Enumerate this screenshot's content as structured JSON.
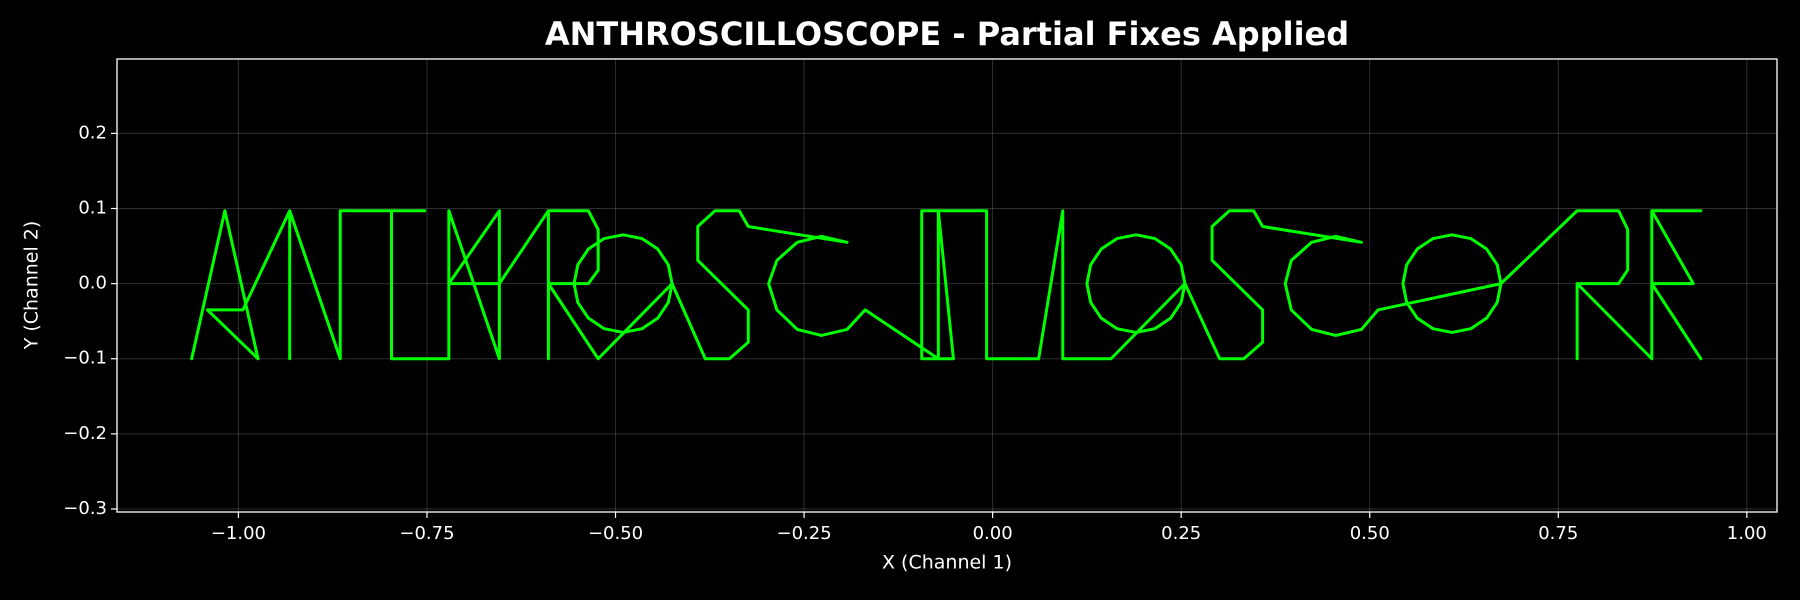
{
  "chart_data": {
    "type": "line",
    "title": "ANTHROSCILLOSCOPE - Partial Fixes Applied",
    "xlabel": "X (Channel 1)",
    "ylabel": "Y (Channel 2)",
    "color": "#00ff00",
    "grid": true,
    "xlim": [
      -1.161,
      1.04
    ],
    "ylim": [
      -0.304,
      0.299
    ],
    "xticks": [
      {
        "value": -1,
        "label": "−1.00"
      },
      {
        "value": -0.75,
        "label": "−0.75"
      },
      {
        "value": -0.5,
        "label": "−0.50"
      },
      {
        "value": -0.25,
        "label": "−0.25"
      },
      {
        "value": 0,
        "label": "0.00"
      },
      {
        "value": 0.25,
        "label": "0.25"
      },
      {
        "value": 0.5,
        "label": "0.50"
      },
      {
        "value": 0.75,
        "label": "0.75"
      },
      {
        "value": 1,
        "label": "1.00"
      }
    ],
    "yticks": [
      {
        "value": -0.3,
        "label": "−0.3"
      },
      {
        "value": -0.2,
        "label": "−0.2"
      },
      {
        "value": -0.1,
        "label": "−0.1"
      },
      {
        "value": 0,
        "label": "0.0"
      },
      0.1,
      0.2
    ],
    "x": [
      -1.062,
      -1.018,
      -0.974,
      -1.041,
      -0.994,
      -0.932,
      -0.932,
      -0.932,
      -0.865,
      -0.865,
      -0.753,
      -0.797,
      -0.797,
      -0.721,
      -0.721,
      -0.654,
      -0.654,
      -0.721,
      -0.654,
      -0.589,
      -0.589,
      -0.589,
      -0.536,
      -0.523,
      -0.523,
      -0.536,
      -0.589,
      -0.523,
      -0.425,
      -0.43,
      -0.444,
      -0.465,
      -0.49,
      -0.515,
      -0.536,
      -0.55,
      -0.555,
      -0.55,
      -0.536,
      -0.515,
      -0.49,
      -0.465,
      -0.444,
      -0.43,
      -0.425,
      -0.381,
      -0.349,
      -0.324,
      -0.324,
      -0.391,
      -0.391,
      -0.368,
      -0.336,
      -0.324,
      -0.193,
      -0.227,
      -0.259,
      -0.286,
      -0.297,
      -0.286,
      -0.259,
      -0.227,
      -0.193,
      -0.169,
      -0.072,
      -0.072,
      -0.052,
      -0.094,
      -0.094,
      -0.008,
      -0.008,
      0.061,
      0.093,
      0.093,
      0.157,
      0.255,
      0.25,
      0.236,
      0.215,
      0.19,
      0.165,
      0.144,
      0.13,
      0.125,
      0.13,
      0.144,
      0.165,
      0.19,
      0.215,
      0.236,
      0.25,
      0.255,
      0.301,
      0.333,
      0.358,
      0.358,
      0.291,
      0.291,
      0.314,
      0.346,
      0.358,
      0.489,
      0.455,
      0.423,
      0.396,
      0.388,
      0.396,
      0.423,
      0.455,
      0.489,
      0.511,
      0.674,
      0.669,
      0.655,
      0.634,
      0.609,
      0.584,
      0.563,
      0.549,
      0.544,
      0.549,
      0.563,
      0.584,
      0.609,
      0.634,
      0.655,
      0.669,
      0.674,
      0.775,
      0.83,
      0.842,
      0.842,
      0.83,
      0.775,
      0.775,
      0.775,
      0.874,
      0.874,
      0.939,
      0.874,
      0.929,
      0.874,
      0.939
    ],
    "values": [
      -0.1,
      0.097,
      -0.1,
      -0.035,
      -0.035,
      0.097,
      -0.1,
      0.097,
      -0.1,
      0.097,
      0.097,
      0.097,
      -0.1,
      -0.1,
      0.097,
      -0.1,
      0.097,
      0,
      0,
      0.097,
      -0.1,
      0.097,
      0.097,
      0.072,
      0.018,
      0,
      0,
      -0.1,
      0,
      0.025,
      0.046,
      0.06,
      0.065,
      0.06,
      0.046,
      0.025,
      0,
      -0.025,
      -0.046,
      -0.06,
      -0.065,
      -0.06,
      -0.046,
      -0.025,
      0,
      -0.1,
      -0.1,
      -0.078,
      -0.035,
      0.031,
      0.076,
      0.097,
      0.097,
      0.076,
      0.055,
      0.063,
      0.055,
      0.031,
      0,
      -0.035,
      -0.061,
      -0.069,
      -0.061,
      -0.035,
      -0.1,
      0.097,
      -0.1,
      -0.1,
      0.097,
      0.097,
      -0.1,
      -0.1,
      0.097,
      -0.1,
      -0.1,
      0,
      0.025,
      0.046,
      0.06,
      0.065,
      0.06,
      0.046,
      0.025,
      0,
      -0.025,
      -0.046,
      -0.06,
      -0.065,
      -0.06,
      -0.046,
      -0.025,
      0,
      -0.1,
      -0.1,
      -0.078,
      -0.035,
      0.031,
      0.076,
      0.097,
      0.097,
      0.076,
      0.055,
      0.063,
      0.055,
      0.031,
      0,
      -0.035,
      -0.061,
      -0.069,
      -0.061,
      -0.035,
      0,
      0.025,
      0.046,
      0.06,
      0.065,
      0.06,
      0.046,
      0.025,
      0,
      -0.025,
      -0.046,
      -0.06,
      -0.065,
      -0.06,
      -0.046,
      -0.025,
      0,
      0.097,
      0.097,
      0.072,
      0.018,
      0,
      0,
      -0.1,
      0,
      -0.1,
      0.097,
      0.097,
      0.097,
      0,
      0,
      -0.1
    ]
  }
}
